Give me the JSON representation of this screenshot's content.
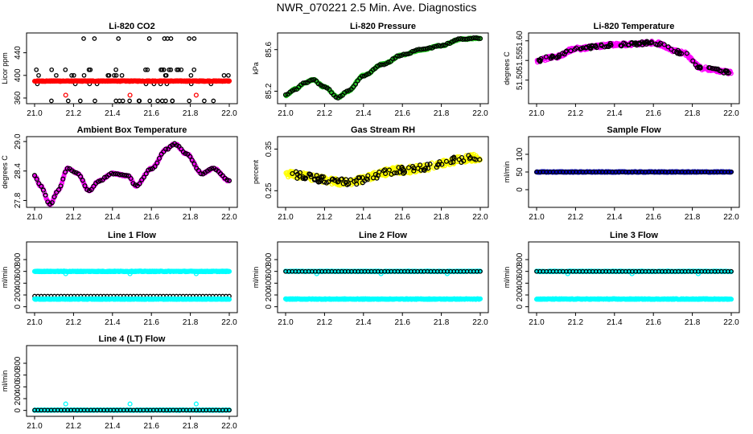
{
  "page": {
    "title": "NWR_070221  2.5 Min. Ave. Diagnostics"
  },
  "colors": {
    "black": "#000000",
    "red": "#ff0000",
    "green": "#22cc22",
    "magenta": "#ff00ff",
    "yellow": "#ffff00",
    "cyan": "#00ffff",
    "blue": "#0000cc"
  },
  "chart_data": [
    {
      "type": "scatter",
      "title": "Li-820 CO2",
      "ylabel": "Licor ppm",
      "xlim": [
        21.0,
        22.0
      ],
      "ylim": [
        350,
        475
      ],
      "xticks": [
        "21.0",
        "21.2",
        "21.4",
        "21.6",
        "21.8",
        "22.0"
      ],
      "xtick_values": [
        21.0,
        21.2,
        21.4,
        21.6,
        21.8,
        22.0
      ],
      "yticks": [
        "360",
        "400",
        "440"
      ],
      "ytick_values": [
        360,
        400,
        440
      ],
      "series": [
        {
          "color": "black",
          "pattern": "levels",
          "levels": [
            465,
            410,
            400,
            385,
            355
          ],
          "y": 400
        },
        {
          "color": "red",
          "pattern": "flat",
          "y": 390,
          "outliers": [
            [
              21.16,
              365
            ],
            [
              21.49,
              365
            ],
            [
              21.83,
              365
            ]
          ]
        }
      ]
    },
    {
      "type": "scatter",
      "title": "Li-820 Pressure",
      "ylabel": "kPa",
      "xlim": [
        21.0,
        22.0
      ],
      "ylim": [
        85.08,
        85.76
      ],
      "xticks": [
        "21.0",
        "21.2",
        "21.4",
        "21.6",
        "21.8",
        "22.0"
      ],
      "xtick_values": [
        21.0,
        21.2,
        21.4,
        21.6,
        21.8,
        22.0
      ],
      "yticks": [
        "85.2",
        "85.6"
      ],
      "ytick_values": [
        85.2,
        85.6
      ],
      "series": [
        {
          "color": "green",
          "pattern": "curve",
          "knots": [
            [
              21.0,
              85.16
            ],
            [
              21.05,
              85.22
            ],
            [
              21.1,
              85.28
            ],
            [
              21.14,
              85.31
            ],
            [
              21.2,
              85.24
            ],
            [
              21.27,
              85.14
            ],
            [
              21.32,
              85.2
            ],
            [
              21.4,
              85.35
            ],
            [
              21.5,
              85.46
            ],
            [
              21.6,
              85.55
            ],
            [
              21.7,
              85.6
            ],
            [
              21.8,
              85.64
            ],
            [
              21.9,
              85.7
            ],
            [
              22.0,
              85.71
            ]
          ]
        },
        {
          "color": "black",
          "pattern": "curve-sparse",
          "same_as": 0
        }
      ]
    },
    {
      "type": "scatter",
      "title": "Li-820 Temperature",
      "ylabel": "degrees C",
      "xlim": [
        21.0,
        22.0
      ],
      "ylim": [
        51.44,
        51.62
      ],
      "xticks": [
        "21.0",
        "21.2",
        "21.4",
        "21.6",
        "21.8",
        "22.0"
      ],
      "xtick_values": [
        21.0,
        21.2,
        21.4,
        21.6,
        21.8,
        22.0
      ],
      "yticks": [
        "51.50",
        "51.55",
        "51.60"
      ],
      "ytick_values": [
        51.5,
        51.55,
        51.6
      ],
      "series": [
        {
          "color": "magenta",
          "pattern": "noisy-curve",
          "noise": 0.025,
          "knots": [
            [
              21.0,
              51.55
            ],
            [
              21.1,
              51.56
            ],
            [
              21.2,
              51.58
            ],
            [
              21.4,
              51.59
            ],
            [
              21.6,
              51.595
            ],
            [
              21.75,
              51.57
            ],
            [
              21.85,
              51.53
            ],
            [
              22.0,
              51.52
            ]
          ]
        },
        {
          "color": "black",
          "pattern": "noisy-curve-sparse",
          "same_as": 0
        }
      ]
    },
    {
      "type": "scatter",
      "title": "Ambient Box Temperature",
      "ylabel": "degrees C",
      "xlim": [
        21.0,
        22.0
      ],
      "ylim": [
        27.66,
        29.1
      ],
      "xticks": [
        "21.0",
        "21.2",
        "21.4",
        "21.6",
        "21.8",
        "22.0"
      ],
      "xtick_values": [
        21.0,
        21.2,
        21.4,
        21.6,
        21.8,
        22.0
      ],
      "yticks": [
        "27.8",
        "28.4",
        "29.0"
      ],
      "ytick_values": [
        27.8,
        28.4,
        29.0
      ],
      "series": [
        {
          "color": "magenta",
          "pattern": "curve",
          "knots": [
            [
              21.0,
              28.3
            ],
            [
              21.03,
              28.1
            ],
            [
              21.08,
              27.72
            ],
            [
              21.12,
              28.0
            ],
            [
              21.17,
              28.45
            ],
            [
              21.22,
              28.35
            ],
            [
              21.28,
              28.0
            ],
            [
              21.33,
              28.2
            ],
            [
              21.4,
              28.35
            ],
            [
              21.48,
              28.3
            ],
            [
              21.52,
              28.1
            ],
            [
              21.6,
              28.45
            ],
            [
              21.68,
              28.85
            ],
            [
              21.72,
              28.95
            ],
            [
              21.78,
              28.75
            ],
            [
              21.86,
              28.35
            ],
            [
              21.92,
              28.45
            ],
            [
              22.0,
              28.2
            ]
          ]
        },
        {
          "color": "black",
          "pattern": "curve-sparse",
          "same_as": 0
        }
      ]
    },
    {
      "type": "scatter",
      "title": "Gas Stream RH",
      "ylabel": "percent",
      "xlim": [
        21.0,
        22.0
      ],
      "ylim": [
        0.21,
        0.38
      ],
      "xticks": [
        "21.0",
        "21.2",
        "21.4",
        "21.6",
        "21.8",
        "22.0"
      ],
      "xtick_values": [
        21.0,
        21.2,
        21.4,
        21.6,
        21.8,
        22.0
      ],
      "yticks": [
        "0.25",
        "0.35"
      ],
      "ytick_values": [
        0.25,
        0.35
      ],
      "series": [
        {
          "color": "yellow",
          "pattern": "noisy-curve",
          "noise": 0.05,
          "knots": [
            [
              21.0,
              0.29
            ],
            [
              21.3,
              0.27
            ],
            [
              21.6,
              0.3
            ],
            [
              22.0,
              0.33
            ]
          ]
        },
        {
          "color": "black",
          "pattern": "noisy-curve-sparse",
          "same_as": 0
        }
      ]
    },
    {
      "type": "scatter",
      "title": "Sample Flow",
      "ylabel": "ml/min",
      "xlim": [
        21.0,
        22.0
      ],
      "ylim": [
        -50,
        150
      ],
      "xticks": [
        "21.0",
        "21.2",
        "21.4",
        "21.6",
        "21.8",
        "22.0"
      ],
      "xtick_values": [
        21.0,
        21.2,
        21.4,
        21.6,
        21.8,
        22.0
      ],
      "yticks": [
        "0",
        "50",
        "100"
      ],
      "ytick_values": [
        0,
        50,
        100
      ],
      "series": [
        {
          "color": "blue",
          "pattern": "flat",
          "y": 50
        },
        {
          "color": "black",
          "pattern": "flat-sparse",
          "y": 50
        }
      ]
    },
    {
      "type": "scatter",
      "title": "Line 1 Flow",
      "ylabel": "ml/min",
      "xlim": [
        21.0,
        22.0
      ],
      "ylim": [
        -100,
        1100
      ],
      "xticks": [
        "21.0",
        "21.2",
        "21.4",
        "21.6",
        "21.8",
        "22.0"
      ],
      "xtick_values": [
        21.0,
        21.2,
        21.4,
        21.6,
        21.8,
        22.0
      ],
      "yticks": [
        "0",
        "200",
        "400",
        "600",
        "800"
      ],
      "ytick_values": [
        0,
        200,
        400,
        600,
        800
      ],
      "series": [
        {
          "color": "cyan",
          "pattern": "flat",
          "y": 600,
          "outliers": [
            [
              21.16,
              560
            ],
            [
              21.49,
              560
            ],
            [
              21.83,
              560
            ]
          ]
        },
        {
          "color": "black",
          "pattern": "flat-sparse",
          "y": 180
        },
        {
          "color": "cyan",
          "pattern": "flat",
          "y": 130
        }
      ]
    },
    {
      "type": "scatter",
      "title": "Line 2 Flow",
      "ylabel": "ml/min",
      "xlim": [
        21.0,
        22.0
      ],
      "ylim": [
        -100,
        1100
      ],
      "xticks": [
        "21.0",
        "21.2",
        "21.4",
        "21.6",
        "21.8",
        "22.0"
      ],
      "xtick_values": [
        21.0,
        21.2,
        21.4,
        21.6,
        21.8,
        22.0
      ],
      "yticks": [
        "0",
        "200",
        "400",
        "600",
        "800"
      ],
      "ytick_values": [
        0,
        200,
        400,
        600,
        800
      ],
      "series": [
        {
          "color": "cyan",
          "pattern": "flat",
          "y": 600,
          "outliers": [
            [
              21.16,
              560
            ],
            [
              21.49,
              560
            ],
            [
              21.83,
              560
            ]
          ]
        },
        {
          "color": "black",
          "pattern": "flat-sparse",
          "y": 600
        },
        {
          "color": "cyan",
          "pattern": "flat",
          "y": 130
        }
      ]
    },
    {
      "type": "scatter",
      "title": "Line 3 Flow",
      "ylabel": "ml/min",
      "xlim": [
        21.0,
        22.0
      ],
      "ylim": [
        -100,
        1100
      ],
      "xticks": [
        "21.0",
        "21.2",
        "21.4",
        "21.6",
        "21.8",
        "22.0"
      ],
      "xtick_values": [
        21.0,
        21.2,
        21.4,
        21.6,
        21.8,
        22.0
      ],
      "yticks": [
        "0",
        "200",
        "400",
        "600",
        "800"
      ],
      "ytick_values": [
        0,
        200,
        400,
        600,
        800
      ],
      "series": [
        {
          "color": "cyan",
          "pattern": "flat",
          "y": 600,
          "outliers": [
            [
              21.16,
              560
            ],
            [
              21.49,
              560
            ],
            [
              21.83,
              560
            ]
          ]
        },
        {
          "color": "black",
          "pattern": "flat-sparse",
          "y": 600
        },
        {
          "color": "cyan",
          "pattern": "flat",
          "y": 130
        }
      ]
    },
    {
      "type": "scatter",
      "title": "Line 4 (LT) Flow",
      "ylabel": "ml/min",
      "xlim": [
        21.0,
        22.0
      ],
      "ylim": [
        -100,
        1100
      ],
      "xticks": [
        "21.0",
        "21.2",
        "21.4",
        "21.6",
        "21.8",
        "22.0"
      ],
      "xtick_values": [
        21.0,
        21.2,
        21.4,
        21.6,
        21.8,
        22.0
      ],
      "yticks": [
        "0",
        "200",
        "400",
        "600",
        "800"
      ],
      "ytick_values": [
        0,
        200,
        400,
        600,
        800
      ],
      "series": [
        {
          "color": "cyan",
          "pattern": "flat",
          "y": 5,
          "outliers": [
            [
              21.16,
              110
            ],
            [
              21.49,
              110
            ],
            [
              21.83,
              110
            ]
          ]
        },
        {
          "color": "black",
          "pattern": "flat-sparse",
          "y": 5
        }
      ]
    }
  ]
}
